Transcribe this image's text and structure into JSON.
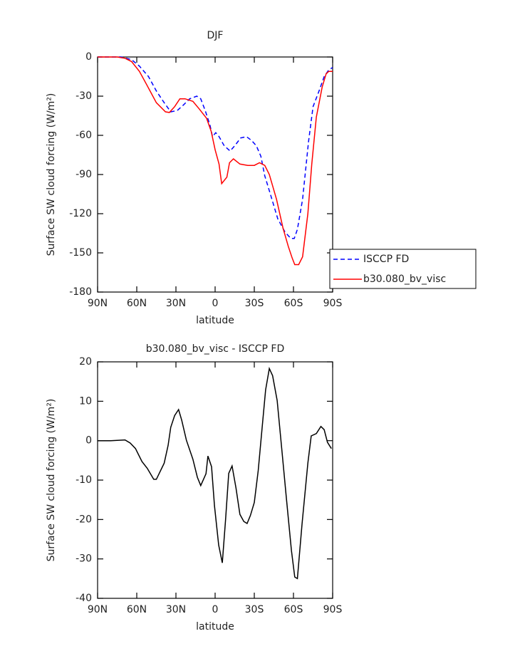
{
  "chart_data": [
    {
      "type": "line",
      "title": "DJF",
      "xlabel": "latitude",
      "ylabel": "Surface SW cloud forcing (W/m²)",
      "xlim": [
        90,
        -90
      ],
      "ylim": [
        -180,
        0
      ],
      "xticks": [
        {
          "value": 90,
          "label": "90N"
        },
        {
          "value": 60,
          "label": "60N"
        },
        {
          "value": 30,
          "label": "30N"
        },
        0,
        {
          "value": -30,
          "label": "30S"
        },
        {
          "value": -60,
          "label": "60S"
        },
        {
          "value": -90,
          "label": "90S"
        }
      ],
      "yticks": [
        0,
        -30,
        -60,
        -90,
        -120,
        -150,
        -180
      ],
      "legend": "right",
      "series": [
        {
          "name": "ISCCP FD",
          "color": "#0000ff",
          "linestyle": "dashed",
          "x": [
            90,
            72,
            64,
            58,
            51,
            45,
            39,
            34,
            29,
            24.5,
            19.5,
            14,
            11,
            7.6,
            4,
            2,
            -0.5,
            -3,
            -7,
            -11.5,
            -15,
            -19.6,
            -24,
            -28,
            -31.6,
            -35,
            -38,
            -42.6,
            -48,
            -53.5,
            -58,
            -60.6,
            -63,
            -67,
            -71.5,
            -75,
            -79.6,
            -83.5,
            -87,
            -90
          ],
          "values": [
            0,
            0,
            -2,
            -7,
            -15,
            -26,
            -35,
            -42,
            -41,
            -37,
            -32,
            -30,
            -32,
            -41,
            -52,
            -61,
            -58,
            -61,
            -68,
            -72,
            -68,
            -62,
            -61,
            -64,
            -68,
            -76,
            -91,
            -106,
            -124,
            -134,
            -139,
            -139,
            -132,
            -109,
            -65,
            -38,
            -26,
            -15,
            -10,
            -8
          ]
        },
        {
          "name": "b30.080_bv_visc",
          "color": "#ff0000",
          "linestyle": "solid",
          "x": [
            90,
            75,
            69,
            64,
            58,
            52,
            45,
            38,
            35,
            31,
            27,
            23,
            17,
            12,
            6.5,
            3,
            0,
            -3,
            -5,
            -9,
            -11,
            -14,
            -19,
            -25,
            -30,
            -34,
            -38,
            -41.5,
            -47,
            -52,
            -56,
            -59,
            -61,
            -64,
            -67,
            -71,
            -74,
            -77.5,
            -82,
            -85,
            -87,
            -90
          ],
          "values": [
            0,
            0,
            -1,
            -3.5,
            -11,
            -22,
            -35,
            -42,
            -42.5,
            -38,
            -32,
            -32,
            -34,
            -40,
            -47,
            -57,
            -71,
            -82,
            -97,
            -92,
            -81,
            -78,
            -82,
            -83,
            -83,
            -81,
            -83,
            -90,
            -109,
            -131,
            -145,
            -154,
            -159,
            -159,
            -153,
            -120,
            -82,
            -46,
            -23,
            -13,
            -11,
            -11
          ]
        }
      ]
    },
    {
      "type": "line",
      "title": "b30.080_bv_visc - ISCCP FD",
      "xlabel": "latitude",
      "ylabel": "Surface SW cloud forcing (W/m²)",
      "xlim": [
        90,
        -90
      ],
      "ylim": [
        -40,
        20
      ],
      "xticks": [
        {
          "value": 90,
          "label": "90N"
        },
        {
          "value": 60,
          "label": "60N"
        },
        {
          "value": 30,
          "label": "30N"
        },
        0,
        {
          "value": -30,
          "label": "30S"
        },
        {
          "value": -60,
          "label": "60S"
        },
        {
          "value": -90,
          "label": "90S"
        }
      ],
      "yticks": [
        20,
        10,
        0,
        -10,
        -20,
        -30,
        -40
      ],
      "color": "#000000",
      "x": [
        90,
        80,
        69,
        65,
        61,
        56,
        52,
        47,
        45,
        39,
        36,
        34,
        31,
        28,
        25.6,
        22,
        17,
        13.6,
        11,
        7,
        5.5,
        2.7,
        0.5,
        -2.7,
        -5.5,
        -8,
        -10.4,
        -13,
        -16,
        -19,
        -22,
        -24.5,
        -27,
        -30,
        -33,
        -36,
        -38.7,
        -41.5,
        -44,
        -47.5,
        -51,
        -54.6,
        -58.4,
        -61,
        -63,
        -66.6,
        -71,
        -73.6,
        -77.5,
        -81,
        -83.5,
        -86,
        -89
      ],
      "values": [
        0,
        0,
        0.2,
        -0.6,
        -2,
        -5.3,
        -7,
        -9.8,
        -9.8,
        -5.7,
        -1.2,
        3.4,
        6.4,
        7.9,
        5.2,
        0.1,
        -4.7,
        -9.3,
        -11.4,
        -8.4,
        -3.9,
        -6.6,
        -16.5,
        -26.5,
        -31,
        -20,
        -8.3,
        -6.4,
        -12,
        -18.7,
        -20.5,
        -21,
        -19,
        -15.7,
        -7.6,
        3.3,
        12.9,
        18.3,
        16.5,
        10.2,
        -2,
        -14.7,
        -27.8,
        -34.6,
        -35,
        -21,
        -5.7,
        1.2,
        1.8,
        3.6,
        2.8,
        -0.4,
        -2
      ]
    }
  ]
}
